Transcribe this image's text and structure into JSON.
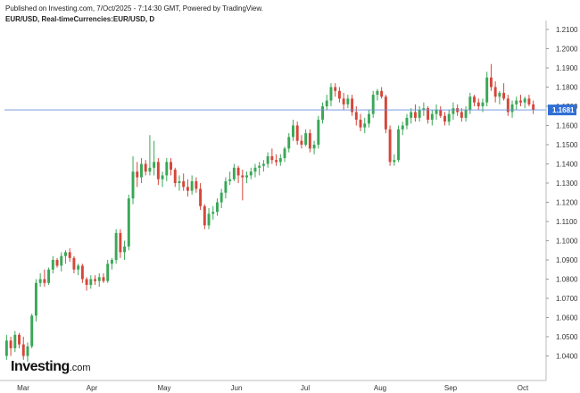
{
  "header": {
    "published": "Published on Investing.com, 7/Oct/2025 - 7:14:30 GMT, Powered by TradingView.",
    "symbol": "EUR/USD, Real-timeCurrencies:EUR/USD, D"
  },
  "logo": {
    "name": "Investing",
    "domain": ".com"
  },
  "colors": {
    "up": "#3aa757",
    "down": "#d6463a",
    "price_line": "#6a8fd8",
    "price_label_bg": "#2f6fd6"
  },
  "chart_data": {
    "type": "candlestick",
    "title": "",
    "xlabel": "",
    "ylabel": "",
    "ylim": [
      1.03,
      1.21
    ],
    "y_ticks": [
      "1.0400",
      "1.0500",
      "1.0600",
      "1.0700",
      "1.0800",
      "1.0900",
      "1.1000",
      "1.1100",
      "1.1200",
      "1.1300",
      "1.1400",
      "1.1500",
      "1.1600",
      "1.1700",
      "1.1800",
      "1.1900",
      "1.2000",
      "1.2100"
    ],
    "x_ticks": [
      "Mar",
      "Apr",
      "May",
      "Jun",
      "Jul",
      "Aug",
      "Sep",
      "Oct"
    ],
    "current_price": 1.1681,
    "current_price_label": "1.1681",
    "grid": false,
    "legend": "none",
    "ohlc": [
      [
        1.04,
        1.051,
        1.038,
        1.048
      ],
      [
        1.048,
        1.05,
        1.04,
        1.044
      ],
      [
        1.044,
        1.053,
        1.042,
        1.051
      ],
      [
        1.051,
        1.052,
        1.044,
        1.046
      ],
      [
        1.046,
        1.05,
        1.038,
        1.04
      ],
      [
        1.04,
        1.047,
        1.037,
        1.045
      ],
      [
        1.045,
        1.062,
        1.044,
        1.061
      ],
      [
        1.061,
        1.08,
        1.058,
        1.078
      ],
      [
        1.078,
        1.083,
        1.076,
        1.08
      ],
      [
        1.08,
        1.085,
        1.076,
        1.078
      ],
      [
        1.078,
        1.086,
        1.077,
        1.085
      ],
      [
        1.085,
        1.092,
        1.083,
        1.09
      ],
      [
        1.09,
        1.091,
        1.086,
        1.087
      ],
      [
        1.087,
        1.094,
        1.084,
        1.092
      ],
      [
        1.092,
        1.095,
        1.088,
        1.094
      ],
      [
        1.094,
        1.096,
        1.089,
        1.091
      ],
      [
        1.091,
        1.092,
        1.083,
        1.085
      ],
      [
        1.085,
        1.088,
        1.082,
        1.087
      ],
      [
        1.087,
        1.088,
        1.078,
        1.08
      ],
      [
        1.08,
        1.081,
        1.074,
        1.077
      ],
      [
        1.077,
        1.082,
        1.075,
        1.08
      ],
      [
        1.08,
        1.082,
        1.077,
        1.079
      ],
      [
        1.079,
        1.083,
        1.076,
        1.081
      ],
      [
        1.081,
        1.083,
        1.078,
        1.079
      ],
      [
        1.079,
        1.09,
        1.078,
        1.088
      ],
      [
        1.088,
        1.091,
        1.085,
        1.09
      ],
      [
        1.09,
        1.106,
        1.088,
        1.104
      ],
      [
        1.104,
        1.106,
        1.091,
        1.094
      ],
      [
        1.094,
        1.1,
        1.09,
        1.097
      ],
      [
        1.097,
        1.124,
        1.095,
        1.122
      ],
      [
        1.122,
        1.144,
        1.119,
        1.136
      ],
      [
        1.136,
        1.141,
        1.128,
        1.133
      ],
      [
        1.133,
        1.143,
        1.13,
        1.14
      ],
      [
        1.14,
        1.142,
        1.134,
        1.136
      ],
      [
        1.136,
        1.155,
        1.134,
        1.138
      ],
      [
        1.138,
        1.152,
        1.134,
        1.141
      ],
      [
        1.141,
        1.143,
        1.129,
        1.132
      ],
      [
        1.132,
        1.136,
        1.128,
        1.134
      ],
      [
        1.134,
        1.143,
        1.131,
        1.141
      ],
      [
        1.141,
        1.143,
        1.134,
        1.137
      ],
      [
        1.137,
        1.138,
        1.128,
        1.13
      ],
      [
        1.13,
        1.134,
        1.126,
        1.131
      ],
      [
        1.131,
        1.135,
        1.126,
        1.128
      ],
      [
        1.128,
        1.132,
        1.123,
        1.126
      ],
      [
        1.126,
        1.134,
        1.124,
        1.131
      ],
      [
        1.131,
        1.133,
        1.125,
        1.127
      ],
      [
        1.127,
        1.13,
        1.116,
        1.118
      ],
      [
        1.118,
        1.119,
        1.106,
        1.108
      ],
      [
        1.108,
        1.117,
        1.106,
        1.114
      ],
      [
        1.114,
        1.118,
        1.111,
        1.115
      ],
      [
        1.115,
        1.122,
        1.113,
        1.12
      ],
      [
        1.12,
        1.127,
        1.117,
        1.125
      ],
      [
        1.125,
        1.133,
        1.122,
        1.131
      ],
      [
        1.131,
        1.136,
        1.129,
        1.132
      ],
      [
        1.132,
        1.14,
        1.131,
        1.138
      ],
      [
        1.138,
        1.139,
        1.13,
        1.134
      ],
      [
        1.134,
        1.137,
        1.121,
        1.133
      ],
      [
        1.133,
        1.136,
        1.13,
        1.134
      ],
      [
        1.134,
        1.138,
        1.132,
        1.136
      ],
      [
        1.136,
        1.14,
        1.133,
        1.138
      ],
      [
        1.138,
        1.141,
        1.134,
        1.139
      ],
      [
        1.139,
        1.142,
        1.136,
        1.14
      ],
      [
        1.14,
        1.146,
        1.138,
        1.144
      ],
      [
        1.144,
        1.148,
        1.14,
        1.142
      ],
      [
        1.142,
        1.145,
        1.139,
        1.141
      ],
      [
        1.141,
        1.145,
        1.139,
        1.143
      ],
      [
        1.143,
        1.149,
        1.141,
        1.148
      ],
      [
        1.148,
        1.156,
        1.146,
        1.154
      ],
      [
        1.154,
        1.163,
        1.152,
        1.16
      ],
      [
        1.16,
        1.162,
        1.15,
        1.152
      ],
      [
        1.152,
        1.155,
        1.148,
        1.15
      ],
      [
        1.15,
        1.158,
        1.149,
        1.156
      ],
      [
        1.156,
        1.158,
        1.146,
        1.148
      ],
      [
        1.148,
        1.152,
        1.145,
        1.15
      ],
      [
        1.15,
        1.165,
        1.148,
        1.163
      ],
      [
        1.163,
        1.172,
        1.161,
        1.17
      ],
      [
        1.17,
        1.176,
        1.168,
        1.173
      ],
      [
        1.173,
        1.182,
        1.17,
        1.18
      ],
      [
        1.18,
        1.182,
        1.175,
        1.178
      ],
      [
        1.178,
        1.18,
        1.172,
        1.174
      ],
      [
        1.174,
        1.177,
        1.168,
        1.171
      ],
      [
        1.171,
        1.176,
        1.169,
        1.174
      ],
      [
        1.174,
        1.176,
        1.165,
        1.167
      ],
      [
        1.167,
        1.17,
        1.16,
        1.163
      ],
      [
        1.163,
        1.166,
        1.157,
        1.159
      ],
      [
        1.159,
        1.164,
        1.156,
        1.161
      ],
      [
        1.161,
        1.168,
        1.159,
        1.166
      ],
      [
        1.166,
        1.178,
        1.164,
        1.176
      ],
      [
        1.176,
        1.179,
        1.173,
        1.178
      ],
      [
        1.178,
        1.18,
        1.174,
        1.175
      ],
      [
        1.175,
        1.176,
        1.156,
        1.158
      ],
      [
        1.158,
        1.16,
        1.139,
        1.141
      ],
      [
        1.141,
        1.145,
        1.139,
        1.142
      ],
      [
        1.142,
        1.16,
        1.141,
        1.158
      ],
      [
        1.158,
        1.162,
        1.155,
        1.16
      ],
      [
        1.16,
        1.166,
        1.158,
        1.164
      ],
      [
        1.164,
        1.169,
        1.161,
        1.167
      ],
      [
        1.167,
        1.171,
        1.162,
        1.164
      ],
      [
        1.164,
        1.17,
        1.162,
        1.168
      ],
      [
        1.168,
        1.172,
        1.165,
        1.169
      ],
      [
        1.169,
        1.17,
        1.161,
        1.163
      ],
      [
        1.163,
        1.168,
        1.16,
        1.166
      ],
      [
        1.166,
        1.171,
        1.163,
        1.168
      ],
      [
        1.168,
        1.17,
        1.164,
        1.165
      ],
      [
        1.165,
        1.167,
        1.16,
        1.162
      ],
      [
        1.162,
        1.168,
        1.16,
        1.166
      ],
      [
        1.166,
        1.172,
        1.163,
        1.169
      ],
      [
        1.169,
        1.171,
        1.165,
        1.167
      ],
      [
        1.167,
        1.169,
        1.162,
        1.164
      ],
      [
        1.164,
        1.17,
        1.162,
        1.168
      ],
      [
        1.168,
        1.177,
        1.166,
        1.175
      ],
      [
        1.175,
        1.176,
        1.17,
        1.172
      ],
      [
        1.172,
        1.174,
        1.168,
        1.17
      ],
      [
        1.17,
        1.174,
        1.167,
        1.172
      ],
      [
        1.172,
        1.188,
        1.17,
        1.185
      ],
      [
        1.185,
        1.192,
        1.178,
        1.18
      ],
      [
        1.18,
        1.183,
        1.172,
        1.175
      ],
      [
        1.175,
        1.178,
        1.171,
        1.177
      ],
      [
        1.177,
        1.182,
        1.173,
        1.174
      ],
      [
        1.174,
        1.176,
        1.165,
        1.167
      ],
      [
        1.167,
        1.173,
        1.164,
        1.171
      ],
      [
        1.171,
        1.175,
        1.168,
        1.173
      ],
      [
        1.173,
        1.176,
        1.17,
        1.172
      ],
      [
        1.172,
        1.175,
        1.169,
        1.174
      ],
      [
        1.174,
        1.176,
        1.17,
        1.171
      ],
      [
        1.171,
        1.173,
        1.166,
        1.168
      ]
    ]
  }
}
